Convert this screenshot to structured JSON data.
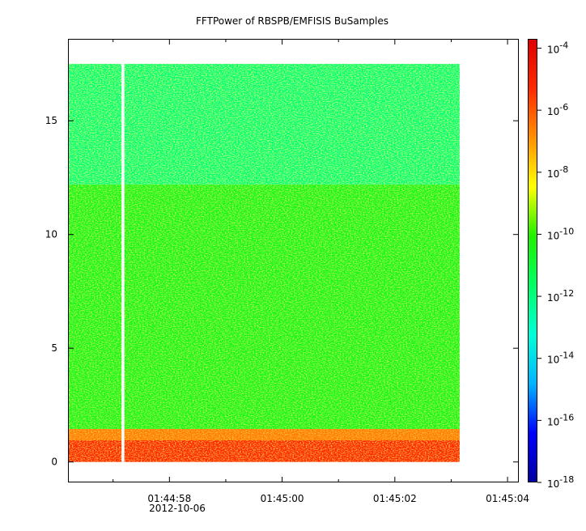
{
  "chart_data": {
    "type": "heatmap",
    "title": "FFTPower of RBSPB/EMFISIS  BuSamples",
    "xlabel": "",
    "ylabel": "",
    "x_ticks": [
      {
        "label": "01:44:58",
        "value": -2
      },
      {
        "label": "01:45:00",
        "value": 0
      },
      {
        "label": "01:45:02",
        "value": 2
      },
      {
        "label": "01:45:04",
        "value": 4
      }
    ],
    "x_minor_ticks": [
      -3,
      -1,
      1,
      3
    ],
    "x_date_label": "2012-10-06",
    "x_range_seconds_from_01_45_00": [
      -3.8,
      4.2
    ],
    "y_ticks": [
      {
        "label": "0",
        "value": 0
      },
      {
        "label": "5",
        "value": 5
      },
      {
        "label": "10",
        "value": 10
      },
      {
        "label": "15",
        "value": 15
      }
    ],
    "ylim": [
      -0.9,
      18.6
    ],
    "data_extent": {
      "x_start": -3.8,
      "x_end": 3.15,
      "y_min": 0,
      "y_max": 17.5
    },
    "data_gap_seconds": [
      -2.85,
      -2.8
    ],
    "bands": [
      {
        "y_from": 0.0,
        "y_to": 0.95,
        "log10_power": -5.2
      },
      {
        "y_from": 0.95,
        "y_to": 1.45,
        "log10_power": -6.6
      },
      {
        "y_from": 1.45,
        "y_to": 12.2,
        "log10_power": -10.6
      },
      {
        "y_from": 12.2,
        "y_to": 17.5,
        "log10_power": -11.9
      }
    ],
    "colorbar": {
      "scale": "log",
      "range_log10": [
        -18,
        -3.7
      ],
      "tick_labels": [
        {
          "base": "10",
          "exp": "-4",
          "log10": -4
        },
        {
          "base": "10",
          "exp": "-6",
          "log10": -6
        },
        {
          "base": "10",
          "exp": "-8",
          "log10": -8
        },
        {
          "base": "10",
          "exp": "-10",
          "log10": -10
        },
        {
          "base": "10",
          "exp": "-12",
          "log10": -12
        },
        {
          "base": "10",
          "exp": "-14",
          "log10": -14
        },
        {
          "base": "10",
          "exp": "-16",
          "log10": -16
        },
        {
          "base": "10",
          "exp": "-18",
          "log10": -18
        }
      ],
      "colormap": [
        "#0000a0",
        "#0000ff",
        "#00b4ff",
        "#00ffd8",
        "#00ff64",
        "#20f000",
        "#ffff00",
        "#ff9000",
        "#ff2800",
        "#e00000"
      ]
    },
    "grid": false,
    "legend": "colorbar-right"
  }
}
